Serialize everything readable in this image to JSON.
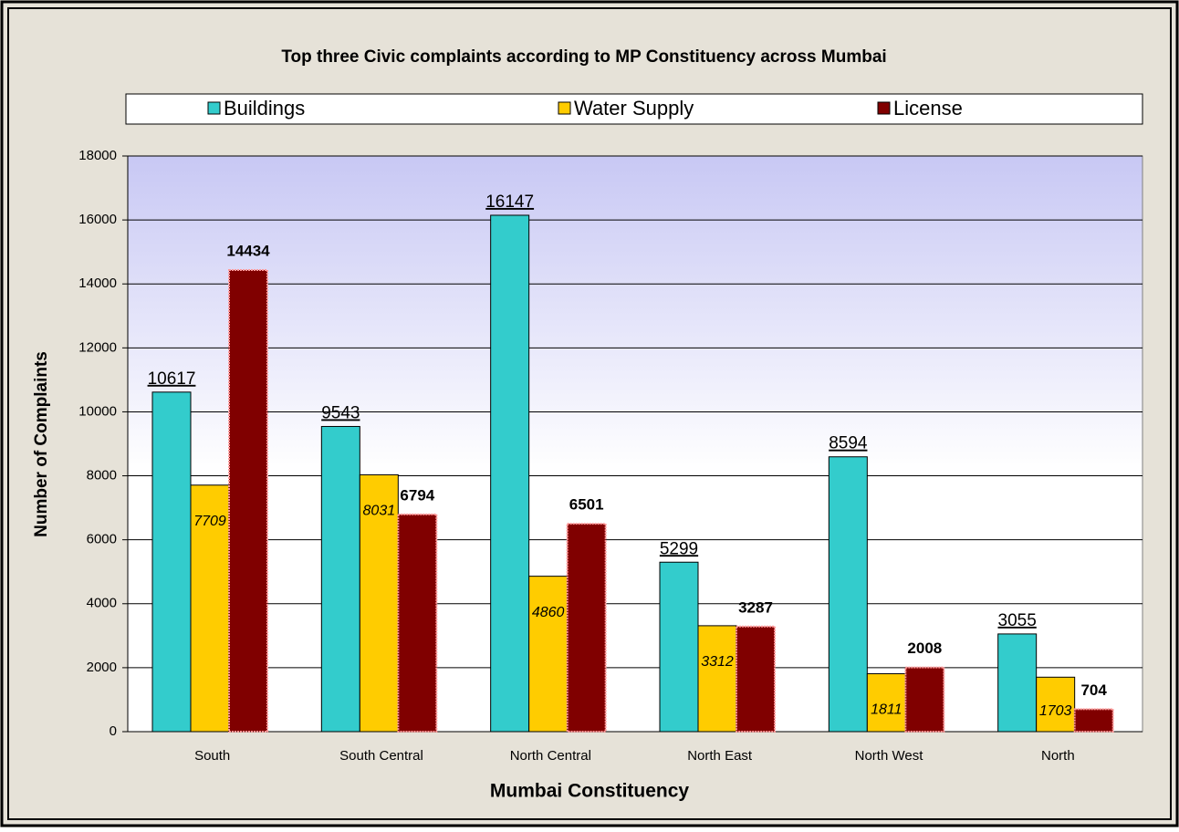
{
  "chart_data": {
    "type": "bar",
    "title": "Top three Civic complaints according to MP Constituency across Mumbai",
    "x_label": "Mumbai Constituency",
    "y_label": "Number of Complaints",
    "categories": [
      "South",
      "South Central",
      "North Central",
      "North East",
      "North West",
      "North"
    ],
    "series": [
      {
        "name": "Buildings",
        "color": "#33cccc",
        "values": [
          10617,
          9543,
          16147,
          5299,
          8594,
          3055
        ]
      },
      {
        "name": "Water Supply",
        "color": "#ffcc00",
        "values": [
          7709,
          8031,
          4860,
          3312,
          1811,
          1703
        ]
      },
      {
        "name": "License",
        "color": "#800000",
        "values": [
          14434,
          6794,
          6501,
          3287,
          2008,
          704
        ]
      }
    ],
    "ylim": [
      0,
      18000
    ],
    "yticks": [
      0,
      2000,
      4000,
      6000,
      8000,
      10000,
      12000,
      14000,
      16000,
      18000
    ],
    "grid": true,
    "legend": "top"
  }
}
